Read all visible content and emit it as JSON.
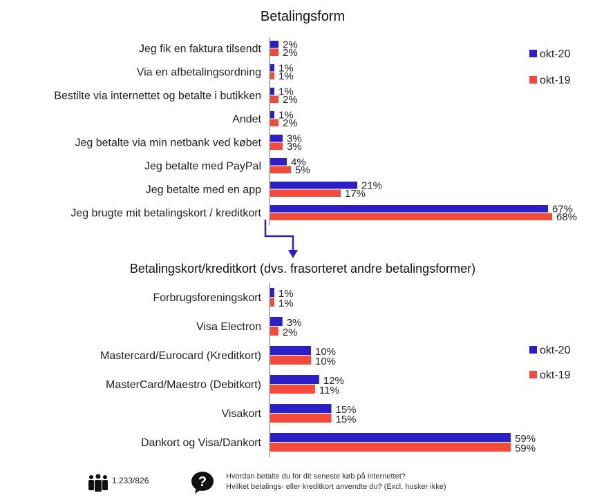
{
  "chart_data": [
    {
      "type": "bar",
      "orientation": "horizontal",
      "title": "Betalingsform",
      "categories": [
        "Jeg fik en faktura tilsendt",
        "Via en afbetalingsordning",
        "Bestilte via internettet og betalte i butikken",
        "Andet",
        "Jeg betalte via min netbank ved købet",
        "Jeg betalte med PayPal",
        "Jeg betalte med en app",
        "Jeg brugte mit betalingskort / kreditkort"
      ],
      "series": [
        {
          "name": "okt-20",
          "color": "#2b1fc8",
          "values": [
            2,
            1,
            1,
            1,
            3,
            4,
            21,
            67
          ]
        },
        {
          "name": "okt-19",
          "color": "#f44a3c",
          "values": [
            2,
            1,
            2,
            2,
            3,
            5,
            17,
            68
          ]
        }
      ],
      "value_suffix": "%",
      "xlim": [
        0,
        100
      ],
      "legend_position": "right"
    },
    {
      "type": "bar",
      "orientation": "horizontal",
      "title": "Betalingskort/kreditkort (dvs. frasorteret andre betalingsformer)",
      "categories": [
        "Forbrugsforeningskort",
        "Visa Electron",
        "Mastercard/Eurocard (Kreditkort)",
        "MasterCard/Maestro (Debitkort)",
        "Visakort",
        "Dankort og Visa/Dankort"
      ],
      "series": [
        {
          "name": "okt-20",
          "color": "#2b1fc8",
          "values": [
            1,
            3,
            10,
            12,
            15,
            59
          ]
        },
        {
          "name": "okt-19",
          "color": "#f44a3c",
          "values": [
            1,
            2,
            10,
            11,
            15,
            59
          ]
        }
      ],
      "value_suffix": "%",
      "xlim": [
        0,
        100
      ],
      "legend_position": "right"
    }
  ],
  "footer": {
    "respondents": "1.233/826",
    "question_line1": "Hvordan betalte du for dit seneste køb på internettet?",
    "question_line2": "Hvilket betalings- eller kreditkort anvendte du? (Excl. husker ikke)",
    "people_icon": "people-icon",
    "question_icon": "question-icon"
  }
}
